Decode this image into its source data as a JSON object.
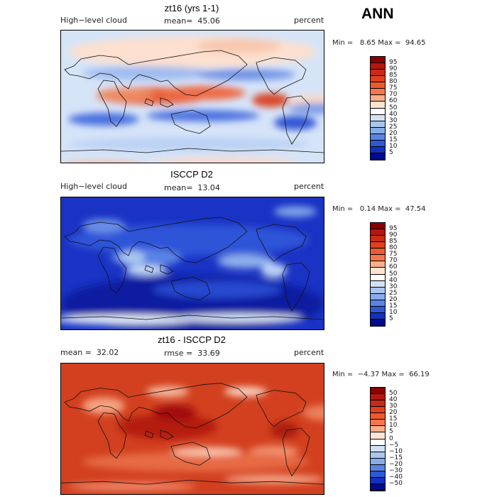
{
  "season": "ANN",
  "panels": [
    {
      "title": "zt16 (yrs 1-1)",
      "left_label": "High−level cloud",
      "mid_label": "mean=  45.06",
      "right_label": "percent",
      "minmax": "Min =   8.65 Max =  94.65",
      "theme": "model"
    },
    {
      "title": "ISCCP D2",
      "left_label": "High−level cloud",
      "mid_label": "mean=  13.04",
      "right_label": "percent",
      "minmax": "Min =   0.14 Max =  47.54",
      "theme": "obs"
    },
    {
      "title": "zt16 - ISCCP D2",
      "left_label": "mean =  32.02",
      "mid_label": "rmse =  33.69",
      "right_label": "percent",
      "minmax": "Min =  −4.37 Max =  66.19",
      "theme": "diff"
    }
  ],
  "colorbar_abs": {
    "labels": [
      "95",
      "90",
      "85",
      "80",
      "75",
      "70",
      "60",
      "50",
      "40",
      "30",
      "25",
      "20",
      "15",
      "10",
      "5"
    ],
    "colors": [
      "#8b0000",
      "#b2180e",
      "#cc2a14",
      "#e0401e",
      "#ee5a30",
      "#f5784c",
      "#fbae8a",
      "#fde4d2",
      "#ffffff",
      "#d2e2f6",
      "#aac6ee",
      "#88acea",
      "#5a84e2",
      "#2e58d6",
      "#1430c0",
      "#000a8c"
    ]
  },
  "colorbar_diff": {
    "labels": [
      "50",
      "40",
      "30",
      "20",
      "15",
      "10",
      "5",
      "0",
      "−5",
      "−10",
      "−15",
      "−20",
      "−30",
      "−40",
      "−50"
    ],
    "colors": [
      "#8b0000",
      "#b2180e",
      "#cc2a14",
      "#e0401e",
      "#ee5a30",
      "#f5784c",
      "#fbae8a",
      "#fde4d2",
      "#ffffff",
      "#d2e2f6",
      "#aac6ee",
      "#88acea",
      "#5a84e2",
      "#2e58d6",
      "#1430c0",
      "#000a8c"
    ]
  }
}
